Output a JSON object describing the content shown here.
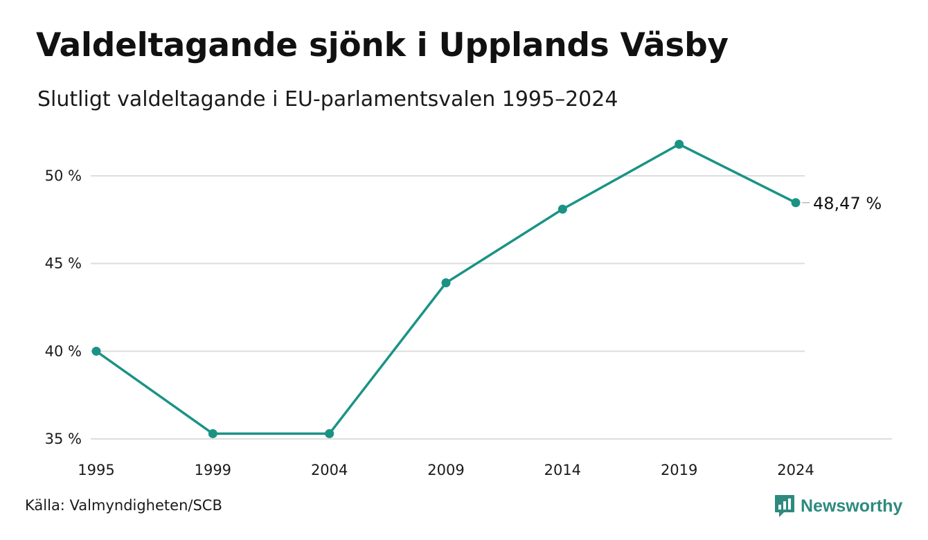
{
  "header": {
    "title": "Valdeltagande sjönk i Upplands Väsby",
    "subtitle": "Slutligt valdeltagande i EU-parlamentsvalen 1995–2024"
  },
  "footer": {
    "source": "Källa: Valmyndigheten/SCB",
    "brand": "Newsworthy",
    "brand_icon": "bar-chart-speech-bubble-icon"
  },
  "colors": {
    "line": "#1a9385",
    "grid": "#dddddd",
    "brand": "#2e8a7e",
    "text": "#1a1a1a"
  },
  "chart_data": {
    "type": "line",
    "title": "Valdeltagande sjönk i Upplands Väsby",
    "subtitle": "Slutligt valdeltagande i EU-parlamentsvalen 1995–2024",
    "xlabel": "",
    "ylabel": "",
    "categories": [
      "1995",
      "1999",
      "2004",
      "2009",
      "2014",
      "2019",
      "2024"
    ],
    "series": [
      {
        "values": [
          40.0,
          35.3,
          35.3,
          43.9,
          48.1,
          51.8,
          48.47
        ]
      }
    ],
    "yticks": [
      35,
      40,
      45,
      50
    ],
    "ytick_labels": [
      "35 %",
      "40 %",
      "45 %",
      "50 %"
    ],
    "ylim": [
      35,
      52
    ],
    "grid": true,
    "end_label": "48,47 %"
  }
}
